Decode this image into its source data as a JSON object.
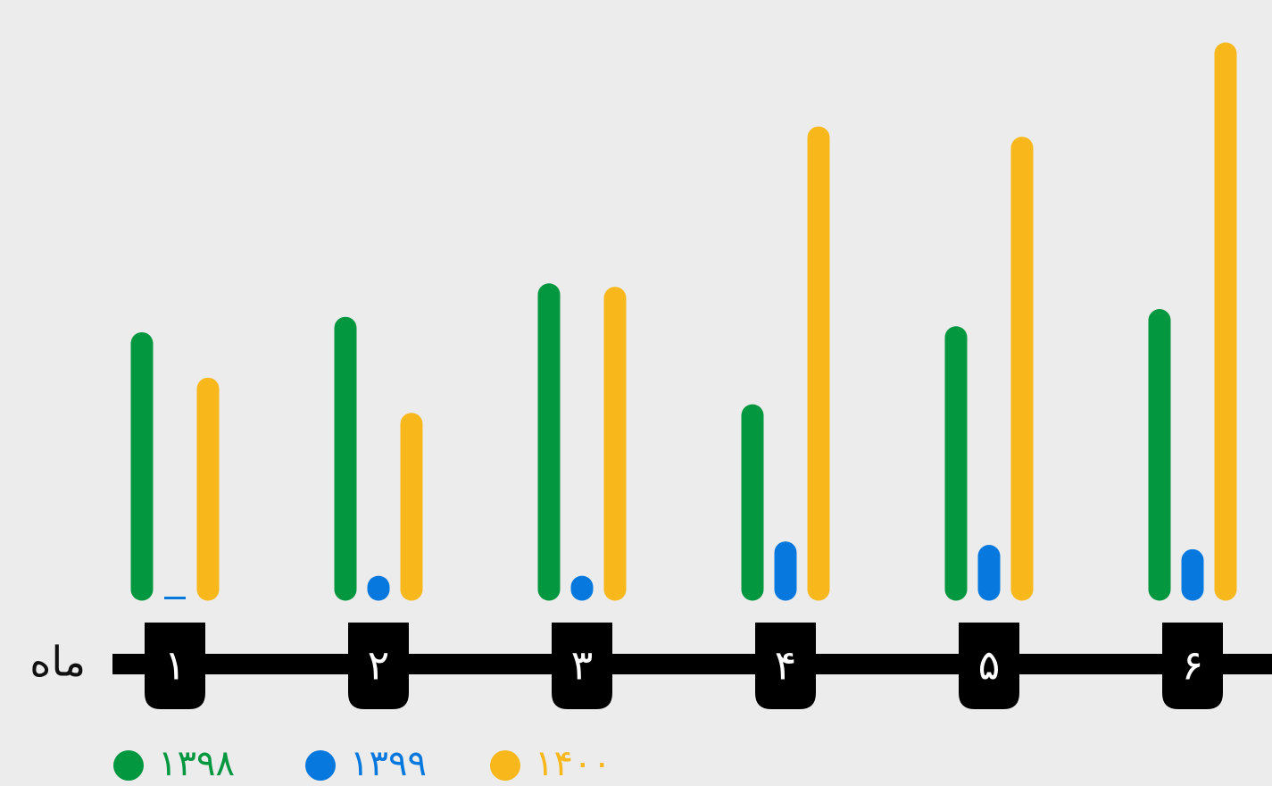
{
  "chart_data": {
    "type": "bar",
    "title": "",
    "xlabel": "ماه",
    "ylabel": "",
    "categories": [
      "۱",
      "۲",
      "۳",
      "۴",
      "۵",
      "۶"
    ],
    "series": [
      {
        "name": "۱۳۹۸",
        "color": "#03973f",
        "values": [
          287,
          305,
          344,
          203,
          294,
          314
        ]
      },
      {
        "name": "۱۳۹۹",
        "color": "#0678de",
        "values": [
          0,
          3,
          3,
          43,
          39,
          34
        ]
      },
      {
        "name": "۱۴۰۰",
        "color": "#f8b71b",
        "values": [
          234,
          193,
          340,
          527,
          515,
          625
        ]
      }
    ],
    "ylim": [
      0,
      650
    ],
    "grid": false,
    "legend": "bottom-left"
  },
  "colors": {
    "background": "#ececec",
    "axis": "#000000",
    "tick_text": "#ffffff"
  }
}
